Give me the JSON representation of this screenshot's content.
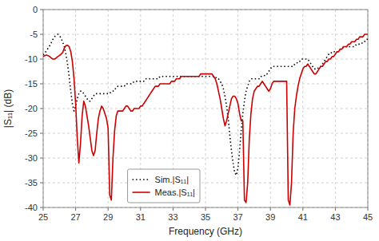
{
  "chart_data": {
    "type": "line",
    "xlabel": "Frequency (GHz)",
    "ylabel": "|S₁₁| (dB)",
    "xlim": [
      25,
      45
    ],
    "ylim": [
      -40,
      0
    ],
    "xticks": [
      25,
      27,
      29,
      31,
      33,
      35,
      37,
      39,
      41,
      43,
      45
    ],
    "yticks": [
      0,
      -5,
      -10,
      -15,
      -20,
      -25,
      -30,
      -35,
      -40
    ],
    "grid": true,
    "legend": "lower center",
    "x": [
      25.0,
      25.1,
      25.2,
      25.3,
      25.4,
      25.5,
      25.6,
      25.7,
      25.8,
      25.9,
      26.0,
      26.1,
      26.2,
      26.3,
      26.4,
      26.5,
      26.6,
      26.7,
      26.8,
      26.9,
      27.0,
      27.1,
      27.2,
      27.3,
      27.4,
      27.5,
      27.6,
      27.7,
      27.8,
      27.9,
      28.0,
      28.1,
      28.2,
      28.3,
      28.4,
      28.5,
      28.6,
      28.7,
      28.8,
      28.9,
      29.0,
      29.1,
      29.2,
      29.3,
      29.4,
      29.5,
      29.6,
      29.7,
      29.8,
      29.9,
      30.0,
      30.1,
      30.2,
      30.3,
      30.4,
      30.5,
      30.6,
      30.7,
      30.8,
      30.9,
      31.0,
      31.1,
      31.2,
      31.3,
      31.4,
      31.5,
      31.6,
      31.7,
      31.8,
      31.9,
      32.0,
      32.1,
      32.2,
      32.3,
      32.4,
      32.5,
      32.6,
      32.7,
      32.8,
      32.9,
      33.0,
      33.1,
      33.2,
      33.3,
      33.4,
      33.5,
      33.6,
      33.7,
      33.8,
      33.9,
      34.0,
      34.1,
      34.2,
      34.3,
      34.4,
      34.5,
      34.6,
      34.7,
      34.8,
      34.9,
      35.0,
      35.1,
      35.2,
      35.3,
      35.4,
      35.5,
      35.6,
      35.7,
      35.8,
      35.9,
      36.0,
      36.1,
      36.2,
      36.3,
      36.4,
      36.5,
      36.6,
      36.7,
      36.8,
      36.9,
      37.0,
      37.1,
      37.2,
      37.3,
      37.4,
      37.5,
      37.6,
      37.7,
      37.8,
      37.9,
      38.0,
      38.1,
      38.2,
      38.3,
      38.4,
      38.5,
      38.6,
      38.7,
      38.8,
      38.9,
      39.0,
      39.1,
      39.2,
      39.3,
      39.4,
      39.5,
      39.6,
      39.7,
      39.8,
      39.9,
      40.0,
      40.1,
      40.2,
      40.3,
      40.4,
      40.5,
      40.6,
      40.7,
      40.8,
      40.9,
      41.0,
      41.1,
      41.2,
      41.3,
      41.4,
      41.5,
      41.6,
      41.7,
      41.8,
      41.9,
      42.0,
      42.1,
      42.2,
      42.3,
      42.4,
      42.5,
      42.6,
      42.7,
      42.8,
      42.9,
      43.0,
      43.1,
      43.2,
      43.3,
      43.4,
      43.5,
      43.6,
      43.7,
      43.8,
      43.9,
      44.0,
      44.1,
      44.2,
      44.3,
      44.4,
      44.5,
      44.6,
      44.7,
      44.8,
      44.9,
      45.0
    ],
    "series": [
      {
        "name": "Sim.|S₁₁|",
        "color": "#000000",
        "line_style": "dotted",
        "values": [
          -9.2,
          -8.8,
          -8.3,
          -7.8,
          -7.3,
          -6.7,
          -6.0,
          -5.5,
          -5.2,
          -5.0,
          -5.2,
          -5.8,
          -6.5,
          -7.5,
          -9.0,
          -11.0,
          -13.5,
          -16.5,
          -19.0,
          -20.5,
          -19.5,
          -18.0,
          -17.0,
          -16.5,
          -16.5,
          -17.0,
          -17.5,
          -18.0,
          -18.5,
          -18.5,
          -18.0,
          -17.5,
          -17.0,
          -17.0,
          -17.0,
          -17.0,
          -17.0,
          -17.0,
          -17.0,
          -17.0,
          -17.0,
          -17.0,
          -16.5,
          -16.5,
          -16.0,
          -16.0,
          -15.5,
          -15.5,
          -15.5,
          -15.5,
          -15.5,
          -15.0,
          -15.0,
          -15.0,
          -15.0,
          -15.0,
          -14.5,
          -14.5,
          -14.5,
          -14.5,
          -14.5,
          -14.5,
          -14.5,
          -14.0,
          -14.0,
          -14.0,
          -14.0,
          -14.0,
          -14.0,
          -14.0,
          -14.0,
          -14.0,
          -13.5,
          -13.5,
          -13.5,
          -13.5,
          -13.5,
          -13.5,
          -13.5,
          -13.5,
          -13.5,
          -13.5,
          -13.5,
          -13.5,
          -13.5,
          -13.5,
          -13.5,
          -13.5,
          -13.5,
          -13.5,
          -13.5,
          -13.5,
          -13.5,
          -13.5,
          -13.5,
          -13.5,
          -13.5,
          -13.5,
          -13.5,
          -13.5,
          -13.5,
          -13.5,
          -13.5,
          -13.5,
          -13.5,
          -13.5,
          -13.5,
          -14.0,
          -14.0,
          -14.5,
          -15.0,
          -16.0,
          -17.5,
          -19.5,
          -22.0,
          -25.5,
          -28.5,
          -31.0,
          -33.0,
          -33.5,
          -32.0,
          -28.5,
          -24.5,
          -21.0,
          -18.5,
          -16.5,
          -15.5,
          -14.5,
          -14.0,
          -14.0,
          -14.0,
          -14.0,
          -14.0,
          -14.0,
          -13.5,
          -13.5,
          -13.5,
          -13.0,
          -13.0,
          -12.5,
          -12.0,
          -11.5,
          -11.5,
          -11.5,
          -11.5,
          -11.5,
          -11.5,
          -11.5,
          -11.5,
          -11.5,
          -11.5,
          -11.5,
          -11.5,
          -11.5,
          -11.5,
          -11.0,
          -11.0,
          -10.5,
          -10.5,
          -10.0,
          -10.0,
          -10.0,
          -10.0,
          -10.0,
          -10.5,
          -11.0,
          -11.5,
          -12.0,
          -12.0,
          -12.0,
          -11.5,
          -11.5,
          -11.0,
          -10.5,
          -10.0,
          -9.5,
          -9.0,
          -9.0,
          -8.5,
          -8.5,
          -8.5,
          -8.5,
          -8.5,
          -8.0,
          -8.0,
          -7.5,
          -7.5,
          -7.5,
          -7.5,
          -7.5,
          -7.5,
          -7.5,
          -7.5,
          -7.0,
          -7.0,
          -7.0,
          -7.0,
          -6.5,
          -6.5,
          -6.0,
          -6.0
        ]
      },
      {
        "name": "Meas.|S₁₁|",
        "color": "#cc0000",
        "line_style": "solid",
        "values": [
          -9.5,
          -9.3,
          -9.2,
          -9.3,
          -9.5,
          -9.8,
          -10.0,
          -10.0,
          -9.8,
          -9.5,
          -9.3,
          -9.0,
          -8.7,
          -7.8,
          -7.3,
          -7.2,
          -7.5,
          -8.5,
          -10.5,
          -14.0,
          -19.0,
          -26.0,
          -31.0,
          -27.0,
          -21.5,
          -18.5,
          -19.5,
          -21.5,
          -23.5,
          -26.0,
          -28.5,
          -29.5,
          -28.5,
          -25.0,
          -22.0,
          -20.5,
          -19.5,
          -20.0,
          -21.0,
          -22.0,
          -24.0,
          -37.5,
          -38.5,
          -30.0,
          -24.5,
          -21.5,
          -20.5,
          -20.5,
          -20.5,
          -20.5,
          -20.0,
          -19.5,
          -19.5,
          -20.0,
          -20.5,
          -20.5,
          -20.0,
          -20.0,
          -20.0,
          -20.0,
          -19.5,
          -19.5,
          -19.0,
          -18.5,
          -18.0,
          -17.5,
          -17.0,
          -16.5,
          -16.0,
          -15.5,
          -15.5,
          -15.5,
          -15.0,
          -15.0,
          -15.0,
          -15.0,
          -15.0,
          -15.0,
          -15.0,
          -14.5,
          -14.5,
          -14.5,
          -14.0,
          -14.0,
          -14.0,
          -13.5,
          -13.5,
          -13.5,
          -13.5,
          -13.5,
          -13.5,
          -13.5,
          -13.5,
          -13.5,
          -13.5,
          -13.5,
          -13.5,
          -13.0,
          -13.0,
          -13.0,
          -13.0,
          -13.0,
          -13.0,
          -13.0,
          -13.0,
          -13.5,
          -14.0,
          -15.0,
          -16.5,
          -18.0,
          -20.0,
          -22.0,
          -23.5,
          -22.5,
          -21.0,
          -19.5,
          -18.0,
          -17.5,
          -17.5,
          -18.0,
          -19.0,
          -21.0,
          -22.5,
          -22.5,
          -38.5,
          -39.0,
          -35.0,
          -26.0,
          -21.0,
          -18.0,
          -16.5,
          -16.0,
          -15.5,
          -15.5,
          -15.0,
          -14.5,
          -15.0,
          -15.5,
          -16.0,
          -16.5,
          -16.0,
          -15.0,
          -14.5,
          -14.5,
          -14.5,
          -14.5,
          -14.5,
          -14.5,
          -14.5,
          -14.5,
          -14.5,
          -38.5,
          -39.5,
          -35.0,
          -25.0,
          -20.0,
          -17.5,
          -15.5,
          -14.0,
          -13.0,
          -12.0,
          -11.5,
          -11.5,
          -11.0,
          -11.5,
          -12.0,
          -12.5,
          -13.0,
          -13.0,
          -12.5,
          -12.0,
          -11.5,
          -11.5,
          -11.0,
          -10.5,
          -10.5,
          -10.0,
          -10.0,
          -9.5,
          -9.5,
          -9.0,
          -8.5,
          -8.5,
          -8.0,
          -8.0,
          -7.5,
          -7.5,
          -7.5,
          -7.0,
          -7.0,
          -6.5,
          -6.5,
          -6.5,
          -6.0,
          -6.0,
          -5.5,
          -5.5,
          -5.5,
          -5.0,
          -5.0,
          -5.0
        ]
      }
    ]
  }
}
